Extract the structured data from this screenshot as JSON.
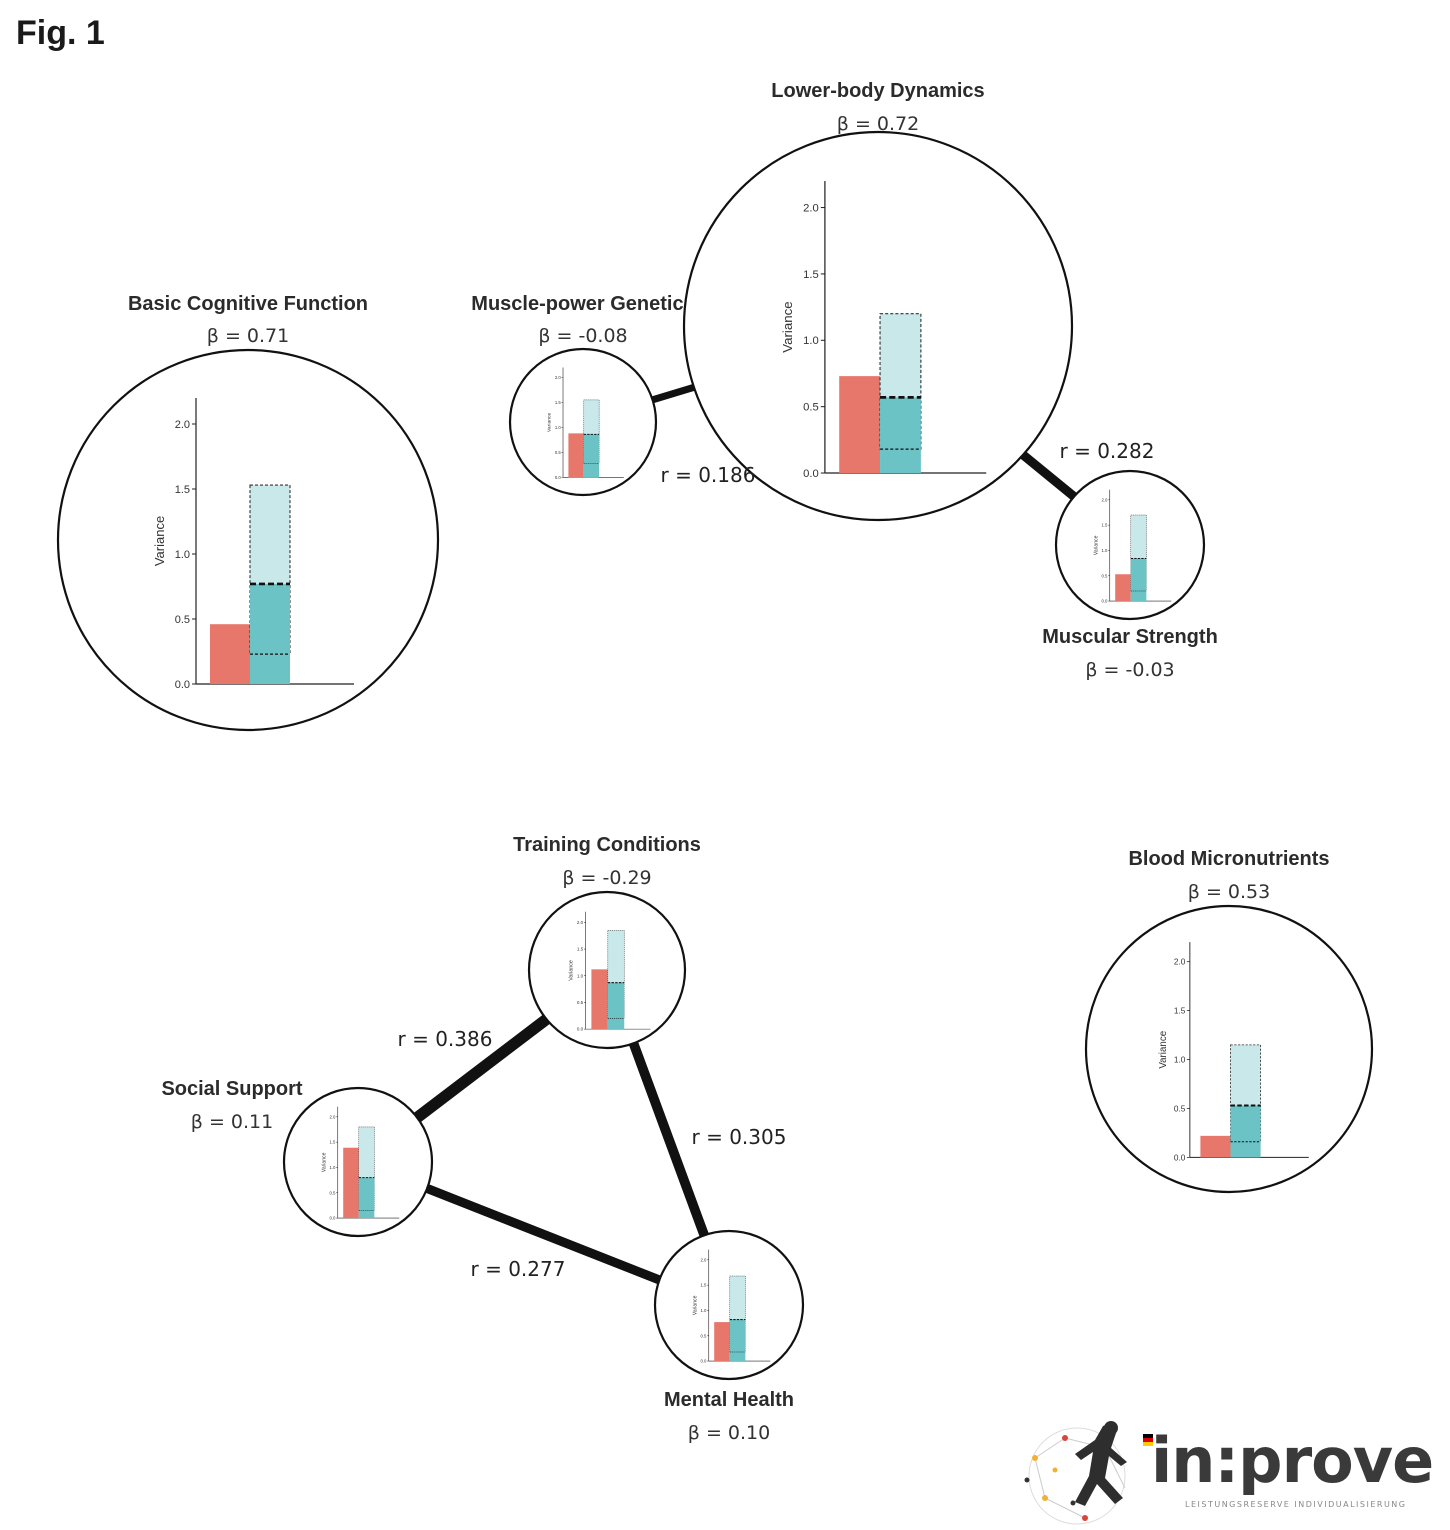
{
  "figure": {
    "title": "Fig. 1"
  },
  "axis": {
    "ylabel": "Variance",
    "ticks": [
      "0.0",
      "0.5",
      "1.0",
      "1.5",
      "2.0"
    ],
    "ymax": 2.2
  },
  "colors": {
    "observed": "#e8776b",
    "modeled": "#6bc3c6",
    "modeled_range": "#c9e8ea",
    "line": "#111111"
  },
  "nodes": [
    {
      "id": "bcf",
      "name": "Basic Cognitive Function",
      "beta": "β = 0.71",
      "chart_data": {
        "type": "bar",
        "observed": 0.46,
        "modeled": 0.77,
        "range_low": 0.23,
        "range_high": 1.53
      }
    },
    {
      "id": "mpg",
      "name": "Muscle-power Genetics",
      "beta": "β = -0.08",
      "chart_data": {
        "type": "bar",
        "observed": 0.88,
        "modeled": 0.86,
        "range_low": 0.28,
        "range_high": 1.55
      }
    },
    {
      "id": "lbd",
      "name": "Lower-body Dynamics",
      "beta": "β = 0.72",
      "chart_data": {
        "type": "bar",
        "observed": 0.73,
        "modeled": 0.57,
        "range_low": 0.18,
        "range_high": 1.2
      }
    },
    {
      "id": "ms",
      "name": "Muscular Strength",
      "beta": "β = -0.03",
      "chart_data": {
        "type": "bar",
        "observed": 0.53,
        "modeled": 0.84,
        "range_low": 0.2,
        "range_high": 1.7
      }
    },
    {
      "id": "tc",
      "name": "Training Conditions",
      "beta": "β = -0.29",
      "chart_data": {
        "type": "bar",
        "observed": 1.12,
        "modeled": 0.87,
        "range_low": 0.2,
        "range_high": 1.85
      }
    },
    {
      "id": "ss",
      "name": "Social Support",
      "beta": "β = 0.11",
      "chart_data": {
        "type": "bar",
        "observed": 1.39,
        "modeled": 0.8,
        "range_low": 0.15,
        "range_high": 1.8
      }
    },
    {
      "id": "mh",
      "name": "Mental Health",
      "beta": "β = 0.10",
      "chart_data": {
        "type": "bar",
        "observed": 0.77,
        "modeled": 0.82,
        "range_low": 0.18,
        "range_high": 1.68
      }
    },
    {
      "id": "bm",
      "name": "Blood Micronutrients",
      "beta": "β = 0.53",
      "chart_data": {
        "type": "bar",
        "observed": 0.22,
        "modeled": 0.53,
        "range_low": 0.16,
        "range_high": 1.15
      }
    }
  ],
  "edges": [
    {
      "from": "mpg",
      "to": "lbd",
      "label": "r = 0.186",
      "r": 0.186
    },
    {
      "from": "lbd",
      "to": "ms",
      "label": "r = 0.282",
      "r": 0.282
    },
    {
      "from": "ss",
      "to": "tc",
      "label": "r = 0.386",
      "r": 0.386
    },
    {
      "from": "tc",
      "to": "mh",
      "label": "r = 0.305",
      "r": 0.305
    },
    {
      "from": "ss",
      "to": "mh",
      "label": "r = 0.277",
      "r": 0.277
    }
  ],
  "logo": {
    "text": "in:prove",
    "subtitle": "LEISTUNGSRESERVE INDIVIDUALISIERUNG"
  }
}
